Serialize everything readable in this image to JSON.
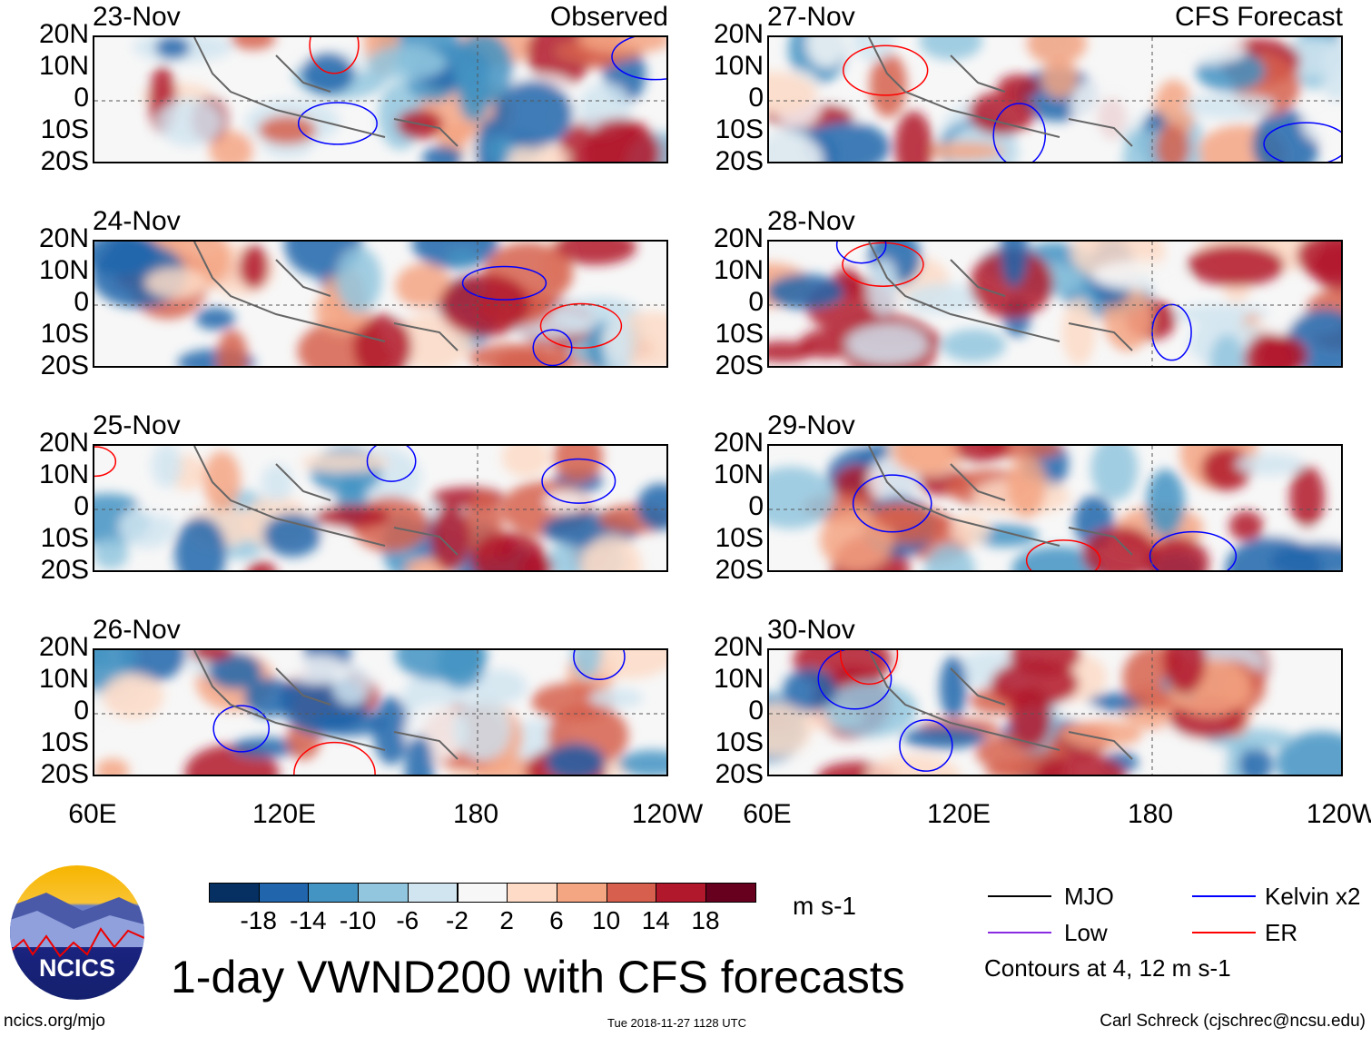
{
  "panels": {
    "left": [
      {
        "date": "23-Nov",
        "label": "Observed"
      },
      {
        "date": "24-Nov"
      },
      {
        "date": "25-Nov"
      },
      {
        "date": "26-Nov"
      }
    ],
    "right": [
      {
        "date": "27-Nov",
        "label": "CFS Forecast"
      },
      {
        "date": "28-Nov"
      },
      {
        "date": "29-Nov"
      },
      {
        "date": "30-Nov"
      }
    ]
  },
  "lat_labels": [
    "20N",
    "10N",
    "0",
    "10S",
    "20S"
  ],
  "lon_labels": [
    "60E",
    "120E",
    "180",
    "120W"
  ],
  "colorbar": {
    "colors": [
      "#053061",
      "#2166ac",
      "#4393c3",
      "#92c5de",
      "#d1e5f0",
      "#f7f7f7",
      "#fddbc7",
      "#f4a582",
      "#d6604d",
      "#b2182b",
      "#67001f"
    ],
    "labels": [
      "-18",
      "-14",
      "-10",
      "-6",
      "-2",
      "2",
      "6",
      "10",
      "14",
      "18"
    ],
    "units": "m s-1"
  },
  "legend": {
    "items": [
      {
        "label": "MJO",
        "color": "#000000"
      },
      {
        "label": "Kelvin x2",
        "color": "#0000ff"
      },
      {
        "label": "Low",
        "color": "#8a2be2"
      },
      {
        "label": "ER",
        "color": "#ff0000"
      }
    ],
    "note": "Contours at 4, 12 m s-1"
  },
  "logo": {
    "text": "NCICS"
  },
  "title": "1-day VWND200 with CFS forecasts",
  "footer": {
    "url": "ncics.org/mjo",
    "timestamp": "Tue 2018-11-27 1128 UTC",
    "author": "Carl Schreck (cjschrec@ncsu.edu)"
  }
}
